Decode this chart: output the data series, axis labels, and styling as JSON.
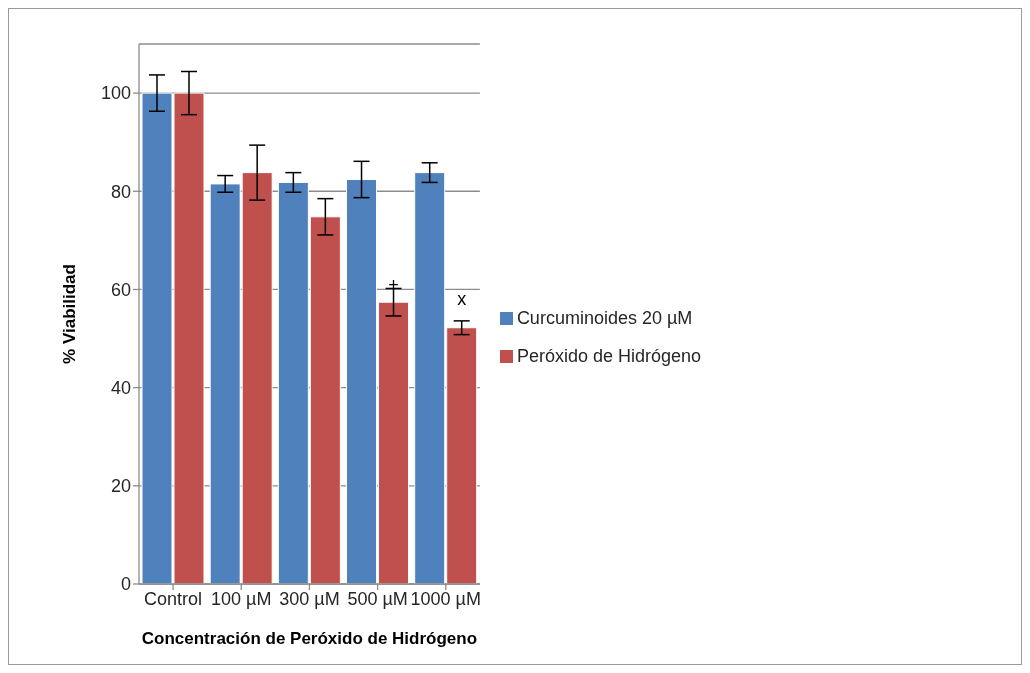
{
  "chart_data": {
    "type": "bar",
    "xlabel": "Concentración de Peróxido de Hidrógeno",
    "ylabel": "% Viabilidad",
    "categories": [
      "Control",
      "100 µM",
      "300 µM",
      "500 µM",
      "1000 µM"
    ],
    "series": [
      {
        "name": "Curcuminoides 20 µM",
        "color": "#4f81bd",
        "values": [
          100,
          81.5,
          81.8,
          82.4,
          83.8
        ],
        "errors": [
          3.7,
          1.7,
          2,
          3.7,
          2
        ]
      },
      {
        "name": "Peróxido de Hidrógeno",
        "color": "#c0504d",
        "values": [
          100,
          83.8,
          74.8,
          57.4,
          52.2
        ],
        "errors": [
          4.4,
          5.6,
          3.7,
          2.8,
          1.4
        ]
      }
    ],
    "annotations": [
      {
        "text": "+",
        "x": "500 µM",
        "y": 61
      },
      {
        "text": "x",
        "x": "1000 µM",
        "y": 58
      }
    ],
    "ylim": [
      0,
      110
    ],
    "yticks": [
      0,
      20,
      40,
      60,
      80,
      100
    ],
    "grid": "y",
    "legend": "right"
  }
}
